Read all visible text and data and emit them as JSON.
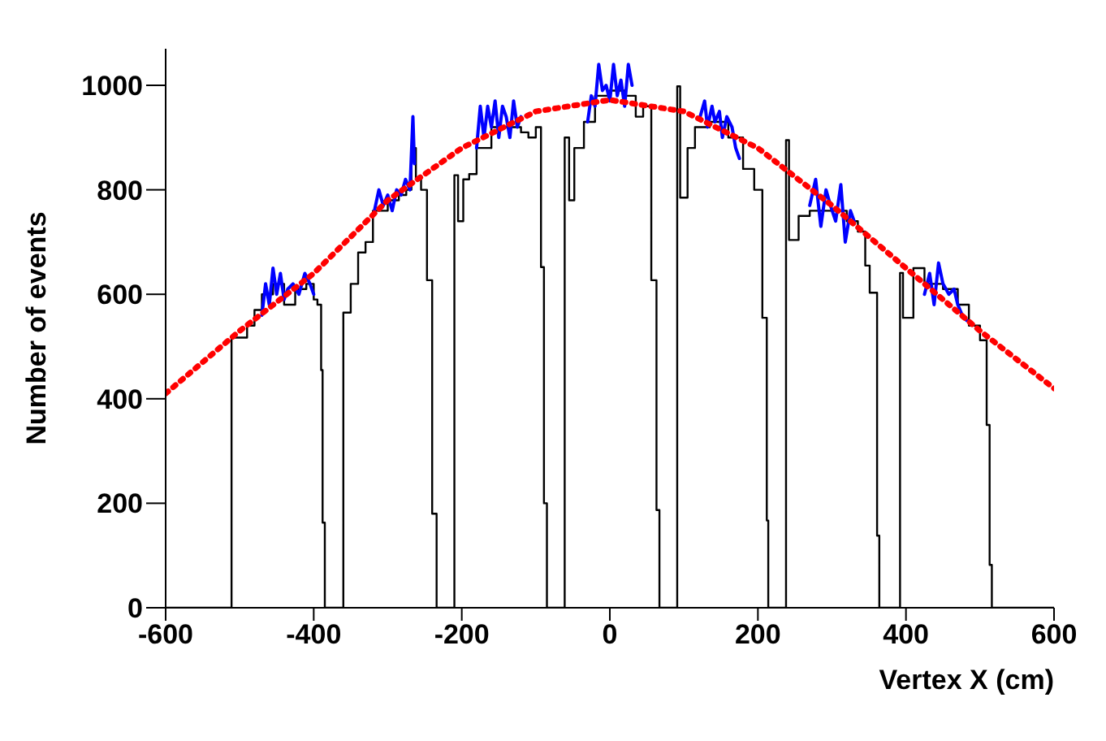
{
  "chart_data": {
    "type": "step",
    "xlabel": "Vertex X (cm)",
    "ylabel": "Number of events",
    "xlim": [
      -600,
      600
    ],
    "ylim": [
      0,
      1070
    ],
    "xticks": [
      -600,
      -400,
      -200,
      0,
      200,
      400,
      600
    ],
    "yticks": [
      0,
      200,
      400,
      600,
      800,
      1000
    ],
    "grid": false,
    "marker": "none",
    "series": [
      {
        "type": "step",
        "color": "#000000",
        "x": [
          -600,
          -511,
          -490,
          -480,
          -470,
          -455,
          -440,
          -425,
          -410,
          -400,
          -395,
          -390,
          -388,
          -385,
          -360,
          -350,
          -340,
          -330,
          -320,
          -300,
          -285,
          -275,
          -268,
          -262,
          -255,
          -250,
          -247,
          -240,
          -234,
          -210,
          -205,
          -198,
          -190,
          -180,
          -160,
          -140,
          -120,
          -110,
          -100,
          -93,
          -89,
          -85,
          -61,
          -55,
          -48,
          -35,
          -20,
          0,
          20,
          35,
          45,
          56,
          63,
          67,
          91,
          95,
          105,
          115,
          135,
          160,
          180,
          195,
          206,
          212,
          214,
          238,
          242,
          255,
          270,
          300,
          320,
          335,
          345,
          351,
          361,
          364,
          392,
          396,
          410,
          425,
          450,
          470,
          485,
          500,
          509,
          513,
          516,
          600
        ],
        "values": [
          0,
          517,
          540,
          570,
          600,
          620,
          580,
          610,
          620,
          590,
          580,
          455,
          163,
          0,
          565,
          620,
          680,
          700,
          760,
          780,
          790,
          800,
          880,
          820,
          800,
          800,
          627,
          180,
          0,
          828,
          740,
          820,
          830,
          880,
          920,
          920,
          910,
          900,
          920,
          652,
          200,
          0,
          900,
          780,
          880,
          930,
          980,
          990,
          980,
          940,
          960,
          627,
          187,
          0,
          998,
          785,
          880,
          920,
          930,
          900,
          840,
          800,
          555,
          167,
          0,
          895,
          704,
          750,
          760,
          760,
          740,
          720,
          655,
          603,
          138,
          0,
          641,
          555,
          650,
          620,
          610,
          580,
          540,
          512,
          350,
          82,
          0,
          0
        ]
      },
      {
        "type": "line",
        "color": "#0000ff",
        "line_style": "solid",
        "x": [
          -470,
          -465,
          -460,
          -455,
          -450,
          -445,
          -440,
          -435,
          -428,
          -420,
          -412,
          -405,
          -400,
          -395,
          -318,
          -312,
          -306,
          -300,
          -294,
          -288,
          -282,
          -276,
          -270,
          -266,
          -264,
          -262,
          -180,
          -175,
          -170,
          -165,
          -160,
          -155,
          -150,
          -145,
          -140,
          -135,
          -130,
          -125,
          -120,
          -118,
          -30,
          -25,
          -20,
          -15,
          -10,
          -5,
          0,
          5,
          10,
          15,
          20,
          25,
          30,
          32,
          122,
          128,
          132,
          138,
          142,
          148,
          152,
          158,
          165,
          170,
          175,
          178,
          270,
          278,
          285,
          292,
          298,
          305,
          312,
          318,
          325,
          330,
          333,
          425,
          432,
          438,
          444,
          450,
          458,
          465,
          470,
          476,
          482
        ],
        "values": [
          560,
          620,
          580,
          650,
          600,
          640,
          590,
          610,
          620,
          600,
          640,
          620,
          600,
          null,
          760,
          800,
          770,
          790,
          760,
          800,
          790,
          820,
          800,
          940,
          850,
          null,
          880,
          960,
          900,
          960,
          920,
          970,
          900,
          960,
          940,
          900,
          970,
          920,
          940,
          null,
          930,
          980,
          960,
          1040,
          990,
          1000,
          970,
          1040,
          980,
          1010,
          960,
          1040,
          1000,
          null,
          940,
          970,
          920,
          960,
          930,
          950,
          900,
          940,
          920,
          880,
          860,
          null,
          770,
          820,
          730,
          800,
          770,
          740,
          810,
          700,
          760,
          740,
          null,
          600,
          640,
          580,
          660,
          620,
          600,
          610,
          580,
          560,
          550
        ]
      },
      {
        "type": "line",
        "color": "#ff0000",
        "line_style": "dotted",
        "x": [
          -600,
          -500,
          -400,
          -300,
          -200,
          -100,
          0,
          100,
          200,
          300,
          400,
          500,
          600
        ],
        "values": [
          410,
          530,
          640,
          780,
          880,
          950,
          972,
          950,
          880,
          770,
          650,
          530,
          420
        ]
      }
    ]
  }
}
